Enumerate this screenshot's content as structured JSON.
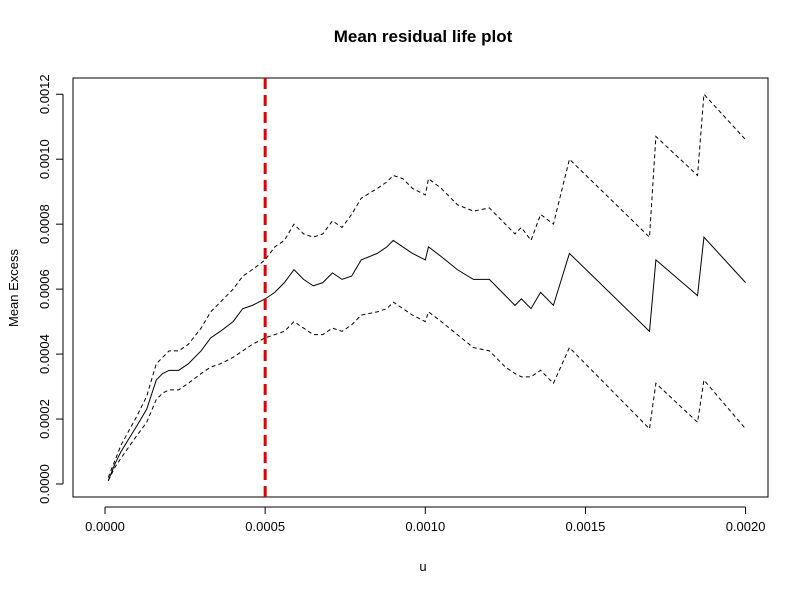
{
  "chart_data": {
    "type": "line",
    "title": "Mean residual life plot",
    "x_label": "u",
    "y_label": "Mean Excess",
    "x": [
      1e-05,
      3e-05,
      5e-05,
      0.0001,
      0.00013,
      0.00016,
      0.00018,
      0.0002,
      0.00023,
      0.00026,
      0.0003,
      0.00033,
      0.00036,
      0.0004,
      0.00043,
      0.00046,
      0.0005,
      0.00053,
      0.00056,
      0.00059,
      0.00062,
      0.00065,
      0.00068,
      0.00071,
      0.00074,
      0.00077,
      0.0008,
      0.00085,
      0.00088,
      0.0009,
      0.00093,
      0.00096,
      0.001,
      0.00101,
      0.00105,
      0.0011,
      0.00115,
      0.0012,
      0.00125,
      0.00128,
      0.0013,
      0.00133,
      0.00136,
      0.0014,
      0.00145,
      0.0017,
      0.00172,
      0.00185,
      0.00187,
      0.002
    ],
    "series": [
      {
        "color": "#000000",
        "dash": "solid",
        "values": [
          1e-05,
          6e-05,
          0.0001,
          0.00018,
          0.00023,
          0.00032,
          0.00034,
          0.00035,
          0.00035,
          0.00037,
          0.00041,
          0.00045,
          0.00047,
          0.0005,
          0.00054,
          0.00055,
          0.00057,
          0.00059,
          0.00062,
          0.00066,
          0.00063,
          0.00061,
          0.00062,
          0.00065,
          0.00063,
          0.00064,
          0.00069,
          0.00071,
          0.00073,
          0.00075,
          0.00073,
          0.00071,
          0.00069,
          0.00073,
          0.0007,
          0.00066,
          0.00063,
          0.00063,
          0.00058,
          0.00055,
          0.00057,
          0.00054,
          0.00059,
          0.00055,
          0.00071,
          0.00047,
          0.00069,
          0.00058,
          0.00076,
          0.00062
        ]
      },
      {
        "color": "#000000",
        "dash": "dashed",
        "values": [
          2e-05,
          7e-05,
          0.00012,
          0.00021,
          0.00027,
          0.00037,
          0.00039,
          0.00041,
          0.00041,
          0.00043,
          0.00048,
          0.00053,
          0.00056,
          0.0006,
          0.00064,
          0.00066,
          0.00069,
          0.00073,
          0.00075,
          0.0008,
          0.00077,
          0.00076,
          0.00077,
          0.00081,
          0.00079,
          0.00083,
          0.00088,
          0.00091,
          0.00093,
          0.00095,
          0.00094,
          0.00091,
          0.00089,
          0.00094,
          0.00091,
          0.00086,
          0.00084,
          0.00085,
          0.0008,
          0.00077,
          0.00079,
          0.00075,
          0.00083,
          0.0008,
          0.001,
          0.00076,
          0.00107,
          0.00095,
          0.0012,
          0.00106
        ]
      },
      {
        "color": "#000000",
        "dash": "dashed",
        "values": [
          1e-05,
          5e-05,
          8e-05,
          0.00015,
          0.00019,
          0.00026,
          0.00028,
          0.00029,
          0.00029,
          0.00031,
          0.00034,
          0.00036,
          0.00037,
          0.00039,
          0.00041,
          0.00043,
          0.00045,
          0.00046,
          0.00047,
          0.0005,
          0.00048,
          0.00046,
          0.00046,
          0.00048,
          0.00047,
          0.00049,
          0.00052,
          0.00053,
          0.00054,
          0.00056,
          0.00054,
          0.00052,
          0.0005,
          0.00053,
          0.0005,
          0.00046,
          0.00042,
          0.00041,
          0.00036,
          0.00034,
          0.00033,
          0.00033,
          0.00035,
          0.00031,
          0.00042,
          0.00017,
          0.00031,
          0.00019,
          0.00032,
          0.00017
        ]
      }
    ],
    "vline": {
      "x": 0.0005,
      "color": "#dd0000"
    },
    "xlim": [
      -0.0001,
      0.00207
    ],
    "ylim": [
      -4e-05,
      0.00125
    ],
    "xticks": [
      {
        "value": 0,
        "label": "0.0000"
      },
      {
        "value": 0.0005,
        "label": "0.0005"
      },
      {
        "value": 0.001,
        "label": "0.0010"
      },
      {
        "value": 0.0015,
        "label": "0.0015"
      },
      {
        "value": 0.002,
        "label": "0.0020"
      }
    ],
    "yticks": [
      {
        "value": 0,
        "label": "0.0000"
      },
      {
        "value": 0.0002,
        "label": "0.0002"
      },
      {
        "value": 0.0004,
        "label": "0.0004"
      },
      {
        "value": 0.0006,
        "label": "0.0006"
      },
      {
        "value": 0.0008,
        "label": "0.0008"
      },
      {
        "value": 0.001,
        "label": "0.0010"
      },
      {
        "value": 0.0012,
        "label": "0.0012"
      }
    ],
    "grid": false
  }
}
